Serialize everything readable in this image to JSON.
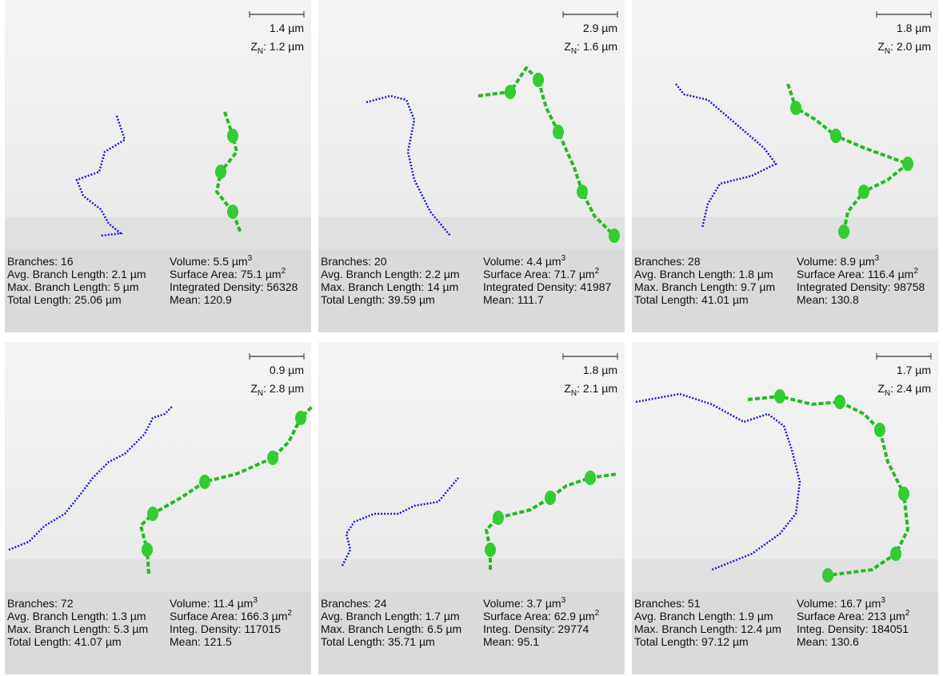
{
  "panels": [
    {
      "scale": "1.4 µm",
      "z_label": "Z",
      "z_sub": "N",
      "z_value": ": 1.2 µm",
      "left": [
        "Branches: 16",
        "Avg. Branch Length: 2.1 µm",
        "Max. Branch Length: 5 µm",
        "Total Length: 25.06 µm"
      ],
      "right": [
        {
          "text": "Volume: 5.5 µm",
          "sup": "3"
        },
        {
          "text": "Surface Area: 75.1 µm",
          "sup": "2"
        },
        {
          "text": "Integrated Density: 56328"
        },
        {
          "text": "Mean: 120.9"
        }
      ]
    },
    {
      "scale": "2.9 µm",
      "z_label": "Z",
      "z_sub": "N",
      "z_value": ": 1.6 µm",
      "left": [
        "Branches: 20",
        "Avg. Branch Length: 2.2 µm",
        "Max. Branch Length: 14 µm",
        "Total Length: 39.59 µm"
      ],
      "right": [
        {
          "text": "Volume: 4.4 µm",
          "sup": "3"
        },
        {
          "text": "Surface Area: 71.7 µm",
          "sup": "2"
        },
        {
          "text": "Integrated Density: 41987"
        },
        {
          "text": "Mean: 111.7"
        }
      ]
    },
    {
      "scale": "1.8 µm",
      "z_label": "Z",
      "z_sub": "N",
      "z_value": ": 2.0 µm",
      "left": [
        "Branches: 28",
        "Avg. Branch Length: 1.8 µm",
        "Max. Branch Length: 9.7 µm",
        "Total Length: 41.01 µm"
      ],
      "right": [
        {
          "text": "Volume: 8.9 µm",
          "sup": "3"
        },
        {
          "text": "Surface Area: 116.4 µm",
          "sup": "2"
        },
        {
          "text": "Integrated Density: 98758"
        },
        {
          "text": "Mean: 130.8"
        }
      ]
    },
    {
      "scale": "0.9 µm",
      "z_label": "Z",
      "z_sub": "N",
      "z_value": ": 2.8 µm",
      "left": [
        "Branches: 72",
        "Avg. Branch Length: 1.3 µm",
        "Max. Branch Length: 5.3 µm",
        "Total Length: 41.07 µm"
      ],
      "right": [
        {
          "text": "Volume: 11.4 µm",
          "sup": "3"
        },
        {
          "text": "Surface Area: 166.3 µm",
          "sup": "2"
        },
        {
          "text": "Integ. Density: 117015"
        },
        {
          "text": "Mean: 121.5"
        }
      ]
    },
    {
      "scale": "1.8 µm",
      "z_label": "Z",
      "z_sub": "N",
      "z_value": ": 2.1 µm",
      "left": [
        "Branches: 24",
        "Avg. Branch Length: 1.7 µm",
        "Max. Branch Length: 6.5 µm",
        "Total Length: 35.71 µm"
      ],
      "right": [
        {
          "text": "Volume: 3.7 µm",
          "sup": "3"
        },
        {
          "text": "Surface Area: 62.9 µm",
          "sup": "2"
        },
        {
          "text": "Integ. Density: 29774"
        },
        {
          "text": "Mean: 95.1"
        }
      ]
    },
    {
      "scale": "1.7 µm",
      "z_label": "Z",
      "z_sub": "N",
      "z_value": ": 2.4 µm",
      "left": [
        "Branches: 51",
        "Avg. Branch Length: 1.9 µm",
        "Max. Branch Length: 12.4 µm",
        "Total Length: 97.12 µm"
      ],
      "right": [
        {
          "text": "Volume: 16.7 µm",
          "sup": "3"
        },
        {
          "text": "Surface Area: 213 µm",
          "sup": "2"
        },
        {
          "text": "Integ. Density: 184051"
        },
        {
          "text": "Mean: 130.6"
        }
      ]
    }
  ]
}
